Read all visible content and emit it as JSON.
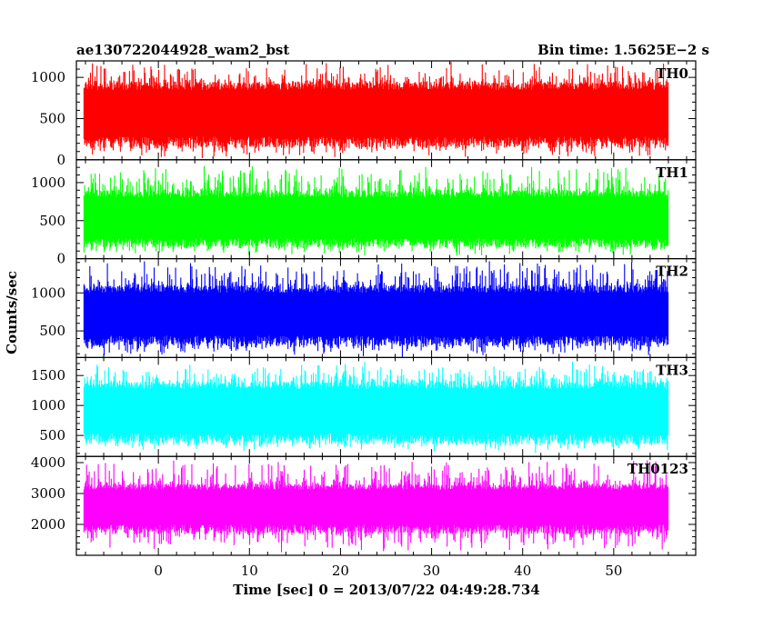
{
  "header": {
    "title_left": "ae130722044928_wam2_bst",
    "title_right": "Bin time: 1.5625E−2 s"
  },
  "chart_data": {
    "type": "line",
    "title": "ae130722044928_wam2_bst",
    "subtitle": "Bin time: 1.5625E−2 s",
    "xlabel": "Time [sec] 0 = 2013/07/22 04:49:28.734",
    "ylabel": "Counts/sec",
    "x_range": [
      -8.2,
      56.0
    ],
    "xlim": [
      -9,
      59
    ],
    "x_ticks": [
      0,
      10,
      20,
      30,
      40,
      50
    ],
    "x_tick_labels": [
      "0",
      "10",
      "20",
      "30",
      "40",
      "50"
    ],
    "bin_time_s": 0.015625,
    "grid": false,
    "panels": [
      {
        "name": "TH0",
        "color": "#ff0000",
        "ylim": [
          0,
          1200
        ],
        "y_ticks": [
          0,
          500,
          1000
        ],
        "y_tick_labels": [
          "0",
          "500",
          "1000"
        ],
        "typical_range": [
          150,
          950
        ],
        "mean": 530,
        "envelope_max": 1200,
        "envelope_min": 0
      },
      {
        "name": "TH1",
        "color": "#00ff00",
        "ylim": [
          0,
          1300
        ],
        "y_ticks": [
          0,
          500,
          1000
        ],
        "y_tick_labels": [
          "0",
          "500",
          "1000"
        ],
        "typical_range": [
          150,
          900
        ],
        "mean": 500,
        "envelope_max": 1250,
        "envelope_min": 20
      },
      {
        "name": "TH2",
        "color": "#0000ff",
        "ylim": [
          150,
          1450
        ],
        "y_ticks": [
          500,
          1000
        ],
        "y_tick_labels": [
          "500",
          "1000"
        ],
        "typical_range": [
          300,
          1100
        ],
        "mean": 700,
        "envelope_max": 1450,
        "envelope_min": 150
      },
      {
        "name": "TH3",
        "color": "#00ffff",
        "ylim": [
          150,
          1800
        ],
        "y_ticks": [
          500,
          1000,
          1500
        ],
        "y_tick_labels": [
          "500",
          "1000",
          "1500"
        ],
        "typical_range": [
          350,
          1400
        ],
        "mean": 880,
        "envelope_max": 1750,
        "envelope_min": 200
      },
      {
        "name": "TH0123",
        "color": "#ff00ff",
        "ylim": [
          1000,
          4200
        ],
        "y_ticks": [
          2000,
          3000,
          4000
        ],
        "y_tick_labels": [
          "2000",
          "3000",
          "4000"
        ],
        "typical_range": [
          1700,
          3300
        ],
        "mean": 2550,
        "envelope_max": 4100,
        "envelope_min": 1050
      }
    ]
  }
}
